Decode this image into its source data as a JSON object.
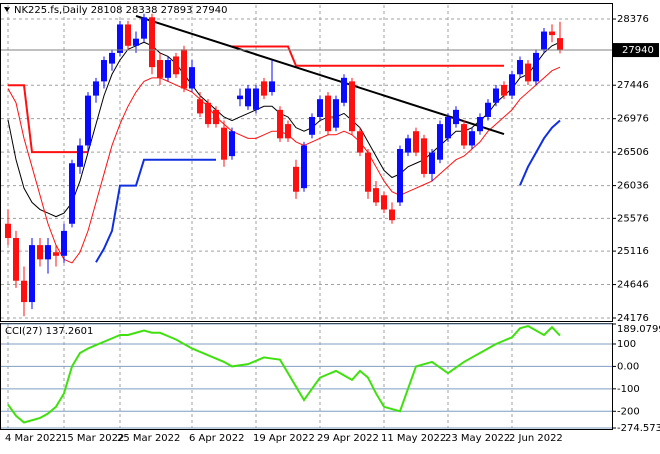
{
  "chart_data": [
    {
      "type": "candlestick",
      "title": "NK225.fs,Daily  28108 28338 27893 27940",
      "categories": [
        "4 Mar 2022",
        null,
        null,
        null,
        null,
        null,
        null,
        "15 Mar 2022",
        null,
        null,
        null,
        null,
        null,
        null,
        "25 Mar 2022",
        null,
        null,
        null,
        null,
        null,
        null,
        null,
        null,
        "6 Apr 2022",
        null,
        null,
        null,
        null,
        null,
        null,
        null,
        "19 Apr 2022",
        null,
        null,
        null,
        null,
        null,
        null,
        null,
        "29 Apr 2022",
        null,
        null,
        null,
        null,
        null,
        null,
        null,
        "11 May 2022",
        null,
        null,
        null,
        null,
        null,
        null,
        null,
        "23 May 2022",
        null,
        null,
        null,
        null,
        null,
        null,
        null,
        "2 Jun 2022",
        null,
        null,
        null,
        null,
        null,
        null
      ],
      "open": [
        25500,
        25300,
        24700,
        24400,
        25200,
        25000,
        25100,
        25050,
        25500,
        26300,
        26600,
        27300,
        27500,
        27750,
        27900,
        28300,
        28000,
        28100,
        28400,
        27800,
        27550,
        27850,
        27950,
        27400,
        27250,
        27200,
        27100,
        26850,
        26450,
        27250,
        27150,
        27100,
        27500,
        27350,
        27100,
        26900,
        26300,
        26000,
        26750,
        27000,
        27300,
        26850,
        27200,
        27500,
        26800,
        26500,
        26000,
        25900,
        25700,
        25800,
        26500,
        26800,
        26700,
        26200,
        26400,
        26700,
        26900,
        26900,
        26600,
        26800,
        27000,
        27200,
        27450,
        27300,
        27600,
        27750,
        27500,
        27950,
        28200,
        28108
      ],
      "high": [
        25700,
        25400,
        24900,
        25300,
        25300,
        25300,
        25200,
        25500,
        26400,
        26700,
        27350,
        27550,
        27850,
        27950,
        28350,
        28350,
        28200,
        28450,
        28450,
        27900,
        27850,
        27900,
        28000,
        27800,
        27350,
        27250,
        27150,
        26950,
        26850,
        27400,
        27450,
        27450,
        27550,
        27800,
        27150,
        26950,
        26400,
        26650,
        27050,
        27300,
        27350,
        27300,
        27600,
        27550,
        26850,
        26550,
        26100,
        25950,
        25800,
        26600,
        26750,
        26850,
        26750,
        26550,
        26950,
        27050,
        27150,
        26950,
        26850,
        27050,
        27250,
        27450,
        27500,
        27650,
        27850,
        27800,
        27950,
        28250,
        28300,
        28338
      ],
      "low": [
        25200,
        24600,
        24200,
        24300,
        24900,
        24800,
        24900,
        24950,
        25450,
        26200,
        26500,
        27200,
        27400,
        27650,
        27850,
        27950,
        27900,
        28050,
        27600,
        27450,
        27500,
        27550,
        27350,
        27350,
        27000,
        26850,
        26850,
        26300,
        26400,
        27150,
        27100,
        27050,
        27250,
        27300,
        26650,
        26650,
        25850,
        25950,
        26700,
        26950,
        26750,
        26800,
        27150,
        26750,
        26450,
        25850,
        25750,
        25650,
        25500,
        25750,
        26450,
        26450,
        26150,
        26100,
        26350,
        26650,
        26850,
        26550,
        26550,
        26750,
        26950,
        27150,
        27250,
        27250,
        27550,
        27450,
        27450,
        27900,
        28050,
        27893
      ],
      "close": [
        25300,
        24700,
        24400,
        25200,
        25000,
        25200,
        25050,
        25400,
        26350,
        26600,
        27300,
        27500,
        27800,
        27900,
        28300,
        28000,
        28100,
        28400,
        27700,
        27550,
        27800,
        27600,
        27400,
        27700,
        27050,
        26900,
        26900,
        26400,
        26800,
        27300,
        27400,
        27400,
        27300,
        27500,
        26700,
        26700,
        25950,
        26600,
        27000,
        27250,
        26800,
        27250,
        27550,
        26800,
        26500,
        25950,
        25800,
        25700,
        25550,
        26550,
        26700,
        26500,
        26200,
        26500,
        26900,
        27000,
        27100,
        26600,
        26800,
        27000,
        27200,
        27400,
        27300,
        27600,
        27800,
        27500,
        27900,
        28200,
        28150,
        27940
      ],
      "up_color": "#0a0aff",
      "down_color": "#ff1010",
      "overlays": [
        {
          "color": "#000000",
          "values": [
            26960,
            26400,
            26000,
            25800,
            25700,
            25650,
            25600,
            25650,
            25800,
            26100,
            26500,
            26900,
            27300,
            27600,
            27800,
            27950,
            28000,
            28050,
            28000,
            27900,
            27850,
            27750,
            27600,
            27450,
            27300,
            27200,
            27100,
            27000,
            26950,
            27000,
            27050,
            27100,
            27150,
            27150,
            27050,
            27000,
            26850,
            26800,
            26850,
            26950,
            27000,
            27000,
            27050,
            26950,
            26850,
            26650,
            26450,
            26250,
            26150,
            26200,
            26300,
            26350,
            26400,
            26500,
            26600,
            26700,
            26800,
            26800,
            26850,
            26950,
            27050,
            27200,
            27300,
            27400,
            27550,
            27600,
            27750,
            27900,
            28000,
            28050
          ]
        },
        {
          "color": "#ff1010",
          "values": [
            27400,
            27200,
            26700,
            26300,
            25900,
            25500,
            25200,
            25000,
            24950,
            25100,
            25400,
            25800,
            26200,
            26600,
            26900,
            27150,
            27350,
            27500,
            27550,
            27550,
            27500,
            27450,
            27400,
            27350,
            27250,
            27150,
            27000,
            26900,
            26800,
            26750,
            26700,
            26700,
            26750,
            26800,
            26800,
            26750,
            26650,
            26600,
            26650,
            26700,
            26750,
            26750,
            26800,
            26750,
            26650,
            26500,
            26300,
            26100,
            25950,
            25900,
            25950,
            26000,
            26050,
            26100,
            26200,
            26300,
            26400,
            26450,
            26550,
            26650,
            26800,
            26900,
            27000,
            27100,
            27250,
            27350,
            27450,
            27550,
            27650,
            27700
          ]
        },
        {
          "color": "#ff1010",
          "values": [
            27446,
            27446,
            27446,
            26506,
            26506,
            26506,
            26506,
            26506,
            26506,
            26506,
            26506,
            null,
            null,
            null,
            null,
            null,
            null,
            null,
            null,
            null,
            null,
            null,
            null,
            null,
            null,
            null,
            null,
            null,
            27990,
            27990,
            27990,
            27990,
            27990,
            27990,
            27990,
            27990,
            27720,
            27720,
            27720,
            27720,
            27720,
            27720,
            27720,
            27720,
            27720,
            27720,
            27720,
            27720,
            27720,
            27720,
            27720,
            27720,
            27720,
            27720,
            27720,
            27720,
            27720,
            27720,
            27720,
            27720,
            27720,
            27720,
            27720,
            null,
            null,
            null,
            null,
            null,
            null,
            null
          ]
        },
        {
          "color": "#1030e0",
          "values": [
            null,
            null,
            null,
            null,
            null,
            null,
            null,
            null,
            null,
            null,
            null,
            24960,
            25150,
            25400,
            26036,
            26036,
            26036,
            26400,
            26400,
            26400,
            26400,
            26400,
            26400,
            26400,
            26400,
            26400,
            26400,
            null,
            null,
            null,
            null,
            null,
            null,
            null,
            null,
            null,
            null,
            null,
            null,
            null,
            null,
            null,
            null,
            null,
            null,
            null,
            null,
            null,
            null,
            null,
            null,
            null,
            null,
            null,
            null,
            null,
            null,
            null,
            null,
            null,
            null,
            null,
            null,
            null,
            26040,
            26300,
            26500,
            26700,
            26850,
            26950
          ]
        }
      ],
      "trendline": {
        "start": [
          16,
          28420
        ],
        "end": [
          62,
          26760
        ],
        "color": "#000000"
      },
      "ylim": [
        24120,
        28573
      ],
      "yticks": [
        28376,
        27446,
        26976,
        26506,
        26036,
        25576,
        25116,
        24646,
        24176
      ],
      "grid": true
    },
    {
      "type": "line",
      "title": "CCI(27) 137.2601",
      "color": "#40e010",
      "values": [
        -170,
        -220,
        -250,
        -240,
        -230,
        -210,
        -180,
        -120,
        0,
        60,
        80,
        95,
        110,
        125,
        140,
        140,
        150,
        160,
        150,
        150,
        135,
        120,
        100,
        80,
        65,
        50,
        35,
        20,
        0,
        5,
        10,
        25,
        40,
        35,
        30,
        -30,
        -90,
        -150,
        -100,
        -50,
        -35,
        -20,
        -40,
        -60,
        -20,
        -50,
        -120,
        -180,
        -190,
        -200,
        -100,
        0,
        10,
        20,
        -5,
        -30,
        -5,
        20,
        40,
        60,
        80,
        100,
        115,
        130,
        170,
        180,
        160,
        140,
        175,
        137.2601
      ],
      "ylim": [
        -274.573,
        189.0799
      ],
      "yticks": [
        189.0799,
        100,
        {
          "value": 0,
          "label": "0.00"
        },
        -100,
        -200,
        -274.573
      ],
      "grid": true
    }
  ]
}
